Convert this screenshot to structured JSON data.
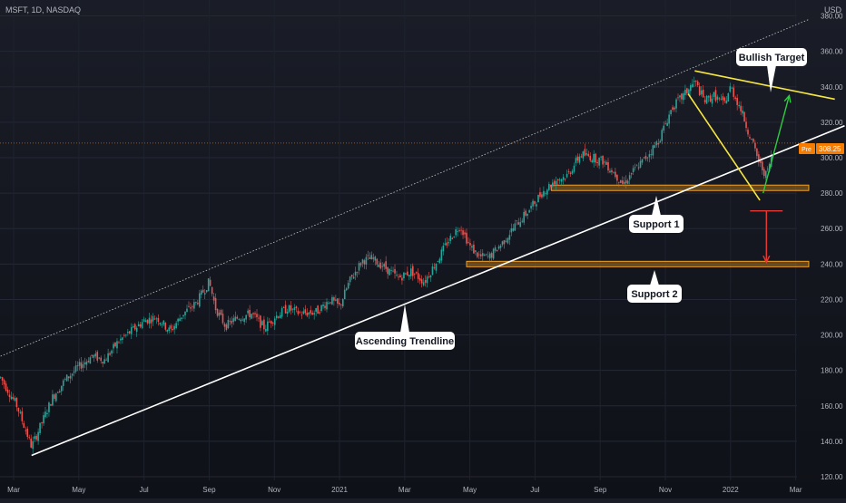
{
  "header": {
    "symbol": "MSFT, 1D, NASDAQ"
  },
  "axis": {
    "currency": "USD"
  },
  "price_badge": {
    "prefix": "Pre",
    "value": "308.25"
  },
  "colors": {
    "up": "#26a69a",
    "down": "#ef5350",
    "trendline": "#ffffff",
    "channel": "#c8c8c8",
    "wedge": "#f5e642",
    "support": "#f0a020",
    "target_arrow": "#2ecc40",
    "down_arrow": "#e53935",
    "badge": "#f57c00"
  },
  "annotations": [
    {
      "id": "bullish-target",
      "text": "Bullish Target"
    },
    {
      "id": "support-1",
      "text": "Support 1"
    },
    {
      "id": "support-2",
      "text": "Support 2"
    },
    {
      "id": "ascending-trendline",
      "text": "Ascending Trendline"
    }
  ],
  "chart_data": {
    "type": "candlestick",
    "ylim": [
      120,
      390
    ],
    "y_ticks": [
      120,
      140,
      160,
      180,
      200,
      220,
      240,
      260,
      280,
      300,
      320,
      340,
      360,
      380
    ],
    "x_tick_labels": [
      {
        "label": "Mar",
        "t": 0.0
      },
      {
        "label": "May",
        "t": 2.0
      },
      {
        "label": "Jul",
        "t": 4.0
      },
      {
        "label": "Sep",
        "t": 6.0
      },
      {
        "label": "Nov",
        "t": 8.0
      },
      {
        "label": "2021",
        "t": 10.0
      },
      {
        "label": "Mar",
        "t": 12.0
      },
      {
        "label": "May",
        "t": 14.0
      },
      {
        "label": "Jul",
        "t": 16.0
      },
      {
        "label": "Sep",
        "t": 18.0
      },
      {
        "label": "Nov",
        "t": 20.0
      },
      {
        "label": "2022",
        "t": 22.0
      },
      {
        "label": "Mar",
        "t": 24.0
      }
    ],
    "price_path": [
      [
        -0.4,
        176
      ],
      [
        0.1,
        160
      ],
      [
        0.55,
        137
      ],
      [
        0.9,
        152
      ],
      [
        1.2,
        165
      ],
      [
        1.6,
        175
      ],
      [
        2.0,
        182
      ],
      [
        2.4,
        188
      ],
      [
        2.8,
        186
      ],
      [
        3.2,
        196
      ],
      [
        3.6,
        202
      ],
      [
        4.0,
        208
      ],
      [
        4.4,
        210
      ],
      [
        4.8,
        202
      ],
      [
        5.2,
        212
      ],
      [
        5.6,
        218
      ],
      [
        6.0,
        230
      ],
      [
        6.2,
        215
      ],
      [
        6.5,
        205
      ],
      [
        6.9,
        210
      ],
      [
        7.3,
        212
      ],
      [
        7.7,
        204
      ],
      [
        8.0,
        210
      ],
      [
        8.4,
        215
      ],
      [
        8.8,
        212
      ],
      [
        9.3,
        213
      ],
      [
        9.7,
        220
      ],
      [
        10.0,
        216
      ],
      [
        10.3,
        230
      ],
      [
        10.7,
        242
      ],
      [
        11.0,
        243
      ],
      [
        11.4,
        238
      ],
      [
        11.8,
        232
      ],
      [
        12.2,
        236
      ],
      [
        12.6,
        230
      ],
      [
        13.0,
        242
      ],
      [
        13.3,
        252
      ],
      [
        13.7,
        262
      ],
      [
        14.0,
        250
      ],
      [
        14.3,
        244
      ],
      [
        14.6,
        244
      ],
      [
        15.0,
        252
      ],
      [
        15.4,
        262
      ],
      [
        15.8,
        270
      ],
      [
        16.2,
        280
      ],
      [
        16.6,
        287
      ],
      [
        17.0,
        290
      ],
      [
        17.4,
        302
      ],
      [
        17.8,
        300
      ],
      [
        18.1,
        298
      ],
      [
        18.4,
        292
      ],
      [
        18.7,
        285
      ],
      [
        19.0,
        292
      ],
      [
        19.4,
        300
      ],
      [
        19.8,
        310
      ],
      [
        20.2,
        328
      ],
      [
        20.6,
        336
      ],
      [
        20.9,
        343
      ],
      [
        21.2,
        332
      ],
      [
        21.5,
        335
      ],
      [
        21.8,
        330
      ],
      [
        22.0,
        340
      ],
      [
        22.3,
        328
      ],
      [
        22.6,
        312
      ],
      [
        22.9,
        296
      ],
      [
        23.1,
        290
      ],
      [
        23.25,
        300
      ]
    ],
    "levels": {
      "support_1": 283,
      "support_2": 240,
      "last_price": 308.25
    },
    "lines": {
      "ascending_trendline": [
        [
          0.55,
          132
        ],
        [
          25.5,
          318
        ]
      ],
      "channel_top": [
        [
          -0.4,
          188
        ],
        [
          24.4,
          378
        ]
      ],
      "wedge_top": [
        [
          20.9,
          349
        ],
        [
          25.2,
          333
        ]
      ],
      "wedge_bottom": [
        [
          20.7,
          336
        ],
        [
          22.9,
          276
        ]
      ],
      "target_arrow": [
        [
          23.0,
          280
        ],
        [
          23.8,
          335
        ]
      ],
      "down_target_bar": [
        [
          22.6,
          270
        ],
        [
          23.6,
          270
        ]
      ],
      "down_arrow": [
        [
          23.1,
          270
        ],
        [
          23.1,
          241
        ]
      ]
    }
  }
}
